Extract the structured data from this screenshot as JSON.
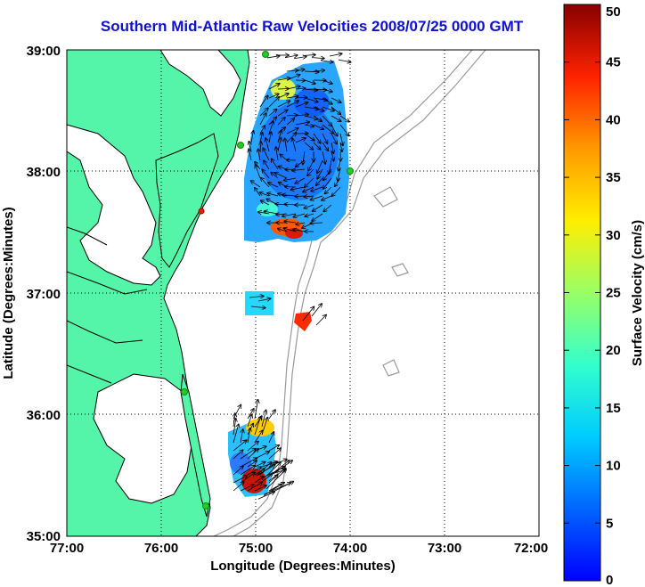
{
  "title": "Southern Mid-Atlantic Raw Velocities 2008/07/25 0000 GMT",
  "x_axis": {
    "label": "Longitude (Degrees:Minutes)",
    "ticks": [
      "77:00",
      "76:00",
      "75:00",
      "74:00",
      "73:00",
      "72:00"
    ]
  },
  "y_axis": {
    "label": "Latitude (Degrees:Minutes)",
    "ticks": [
      "39:00",
      "38:00",
      "37:00",
      "36:00",
      "35:00"
    ]
  },
  "colorbar": {
    "label": "Surface Velocity (cm/s)",
    "ticks": [
      "50",
      "45",
      "40",
      "35",
      "30",
      "25",
      "20",
      "15",
      "10",
      "5",
      "0"
    ],
    "range": [
      0,
      50
    ],
    "colormap": "jet"
  },
  "colors": {
    "title": "#1010d0",
    "land": "#55f5a9",
    "coastline": "#000000",
    "bathymetry": "#9a9a9a",
    "station": "#22cc22"
  },
  "map": {
    "lon_range": [
      -77,
      -72
    ],
    "lat_range": [
      35,
      39
    ],
    "grid": "dotted"
  }
}
